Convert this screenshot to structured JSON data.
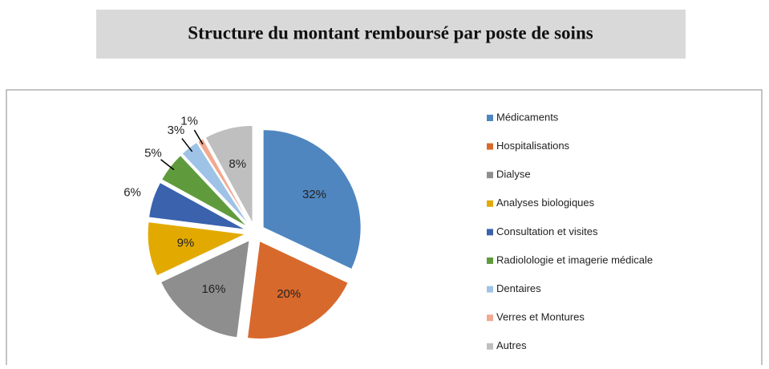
{
  "chart_data": {
    "type": "pie",
    "title": "Structure du montant remboursé par poste de soins",
    "categories": [
      "Médicaments",
      "Hospitalisations",
      "Dialyse",
      "Analyses biologiques",
      "Consultation et visites",
      "Radiolologie et imagerie médicale",
      "Dentaires",
      "Verres et Montures",
      "Autres"
    ],
    "values": [
      32,
      20,
      16,
      9,
      6,
      5,
      3,
      1,
      8
    ],
    "value_labels": [
      "32%",
      "20%",
      "16%",
      "9%",
      "6%",
      "5%",
      "3%",
      "1%",
      "8%"
    ],
    "colors": [
      "#4f86c0",
      "#d8692c",
      "#8e8e8e",
      "#e2aa00",
      "#3a62ad",
      "#5f9b3c",
      "#9ec3e6",
      "#f2a98f",
      "#bfbfbf"
    ],
    "legend": "right"
  }
}
